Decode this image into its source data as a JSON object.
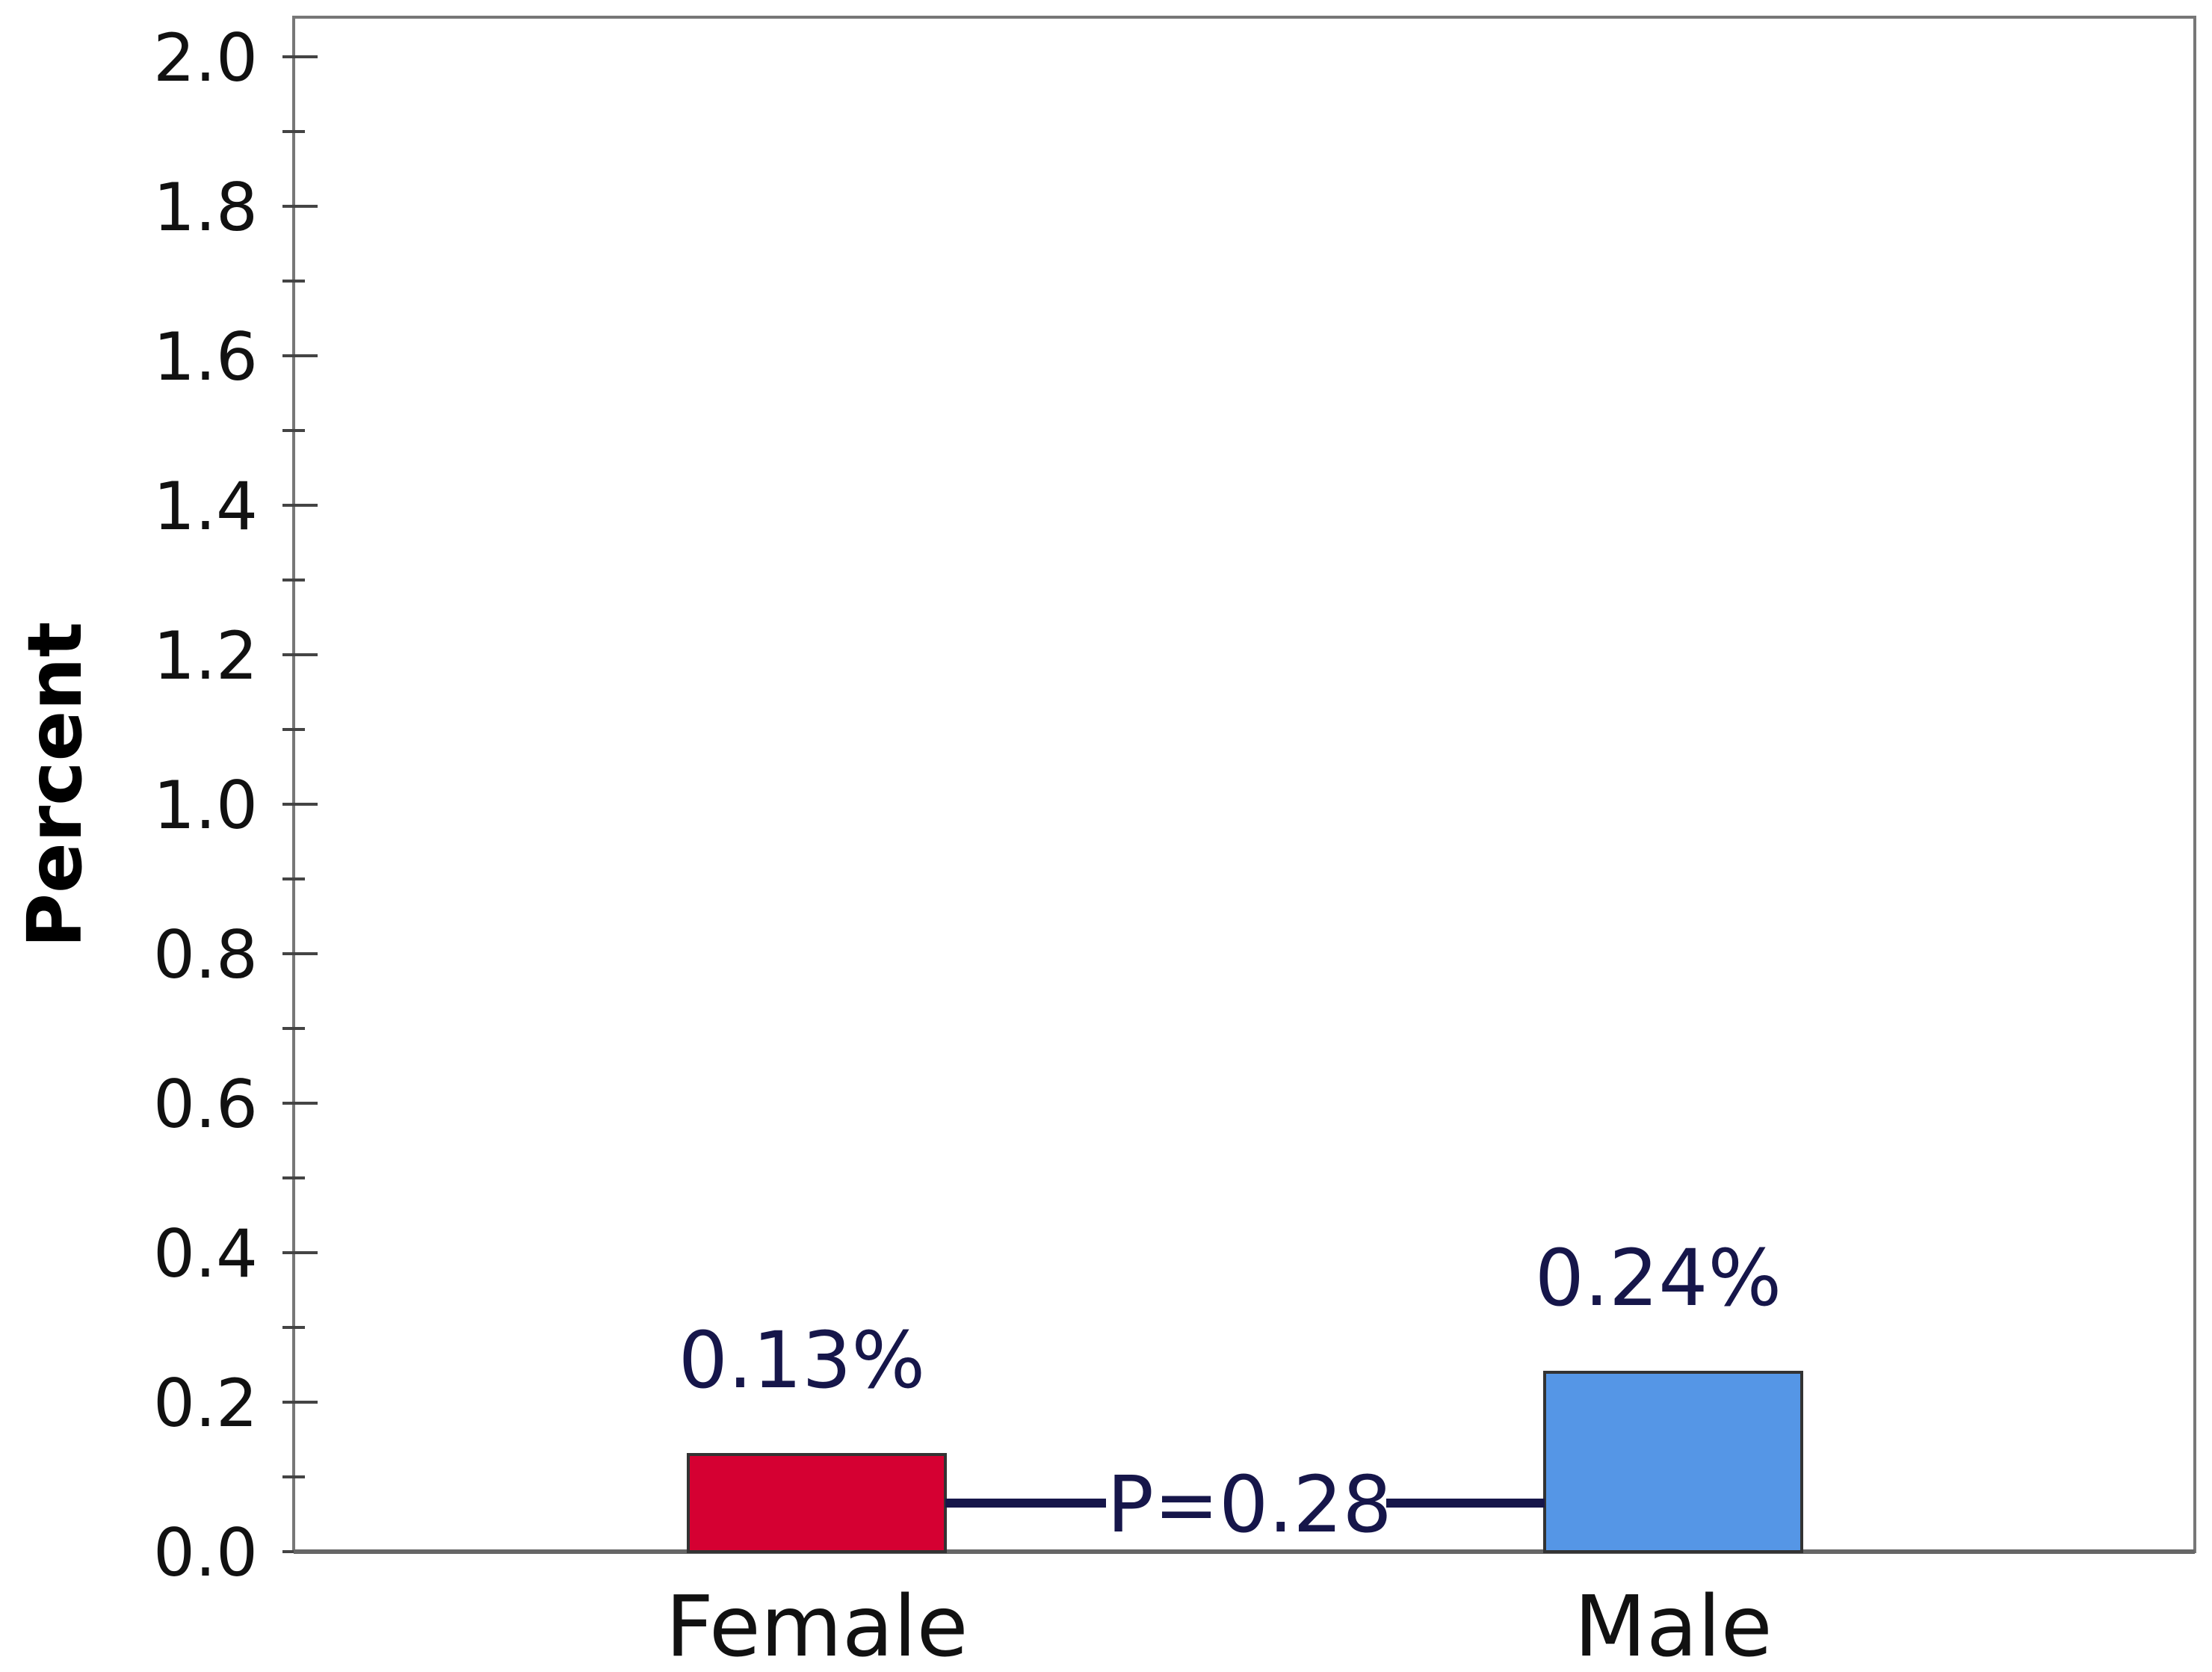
{
  "chart_data": {
    "type": "bar",
    "title": "",
    "xlabel": "",
    "ylabel": "Percent",
    "categories": [
      "Female",
      "Male"
    ],
    "values": [
      0.13,
      0.24
    ],
    "value_labels": [
      "0.13%",
      "0.24%"
    ],
    "bar_colors": [
      "#d50032",
      "#5596e6"
    ],
    "ylim": [
      0,
      2.0
    ],
    "yticks": [
      "0.0",
      "0.2",
      "0.4",
      "0.6",
      "0.8",
      "1.0",
      "1.2",
      "1.4",
      "1.6",
      "1.8",
      "2.0"
    ],
    "grid": false,
    "legend": "none",
    "annotation": {
      "text": "P=0.28",
      "color": "#16164a",
      "between": [
        "Female",
        "Male"
      ]
    }
  }
}
